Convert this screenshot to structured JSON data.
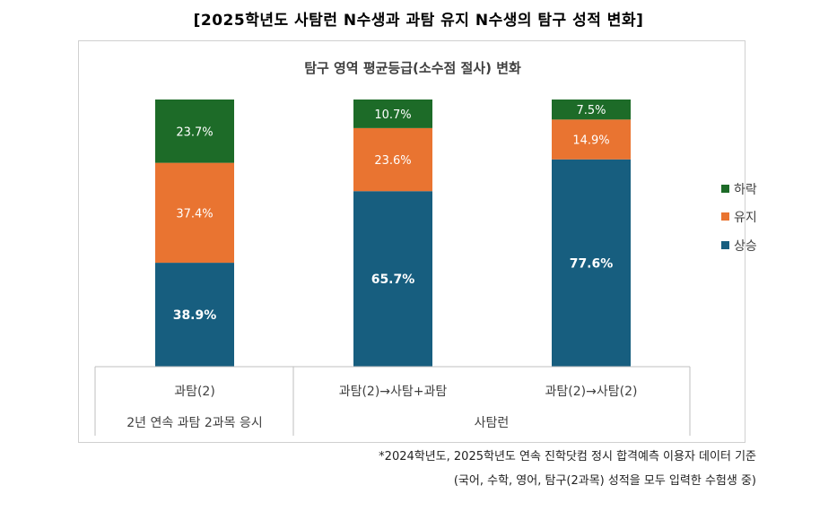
{
  "header": {
    "title": "[2025학년도 사탐런 N수생과 과탐 유지 N수생의 탐구 성적 변화]"
  },
  "chart_data": {
    "type": "bar",
    "stacked": true,
    "percent_stacked": true,
    "title": "탐구 영역 평균등급(소수점 절사) 변화",
    "categories": [
      "과탐(2)",
      "과탐(2)→사탐+과탐",
      "과탐(2)→사탐(2)"
    ],
    "group_labels": [
      {
        "label": "2년 연속 과탐 2과목 응시",
        "categories": [
          0
        ]
      },
      {
        "label": "사탐런",
        "categories": [
          1,
          2
        ]
      }
    ],
    "series": [
      {
        "name": "상승",
        "color": "#175e7f",
        "values": [
          38.9,
          65.7,
          77.6
        ],
        "labels": [
          "38.9%",
          "65.7%",
          "77.6%"
        ]
      },
      {
        "name": "유지",
        "color": "#e97431",
        "values": [
          37.4,
          23.6,
          14.9
        ],
        "labels": [
          "37.4%",
          "23.6%",
          "14.9%"
        ]
      },
      {
        "name": "하락",
        "color": "#1d6b28",
        "values": [
          23.7,
          10.7,
          7.5
        ],
        "labels": [
          "23.7%",
          "10.7%",
          "7.5%"
        ]
      }
    ],
    "legend_order": [
      "하락",
      "유지",
      "상승"
    ],
    "legend_position": "right",
    "ylim": [
      0,
      100
    ],
    "grid": false
  },
  "footnote": {
    "line1": "*2024학년도, 2025학년도 연속 진학닷컴 정시 합격예측 이용자 데이터 기준",
    "line2": "(국어, 수학, 영어, 탐구(2과목) 성적을 모두 입력한 수험생 중)"
  }
}
